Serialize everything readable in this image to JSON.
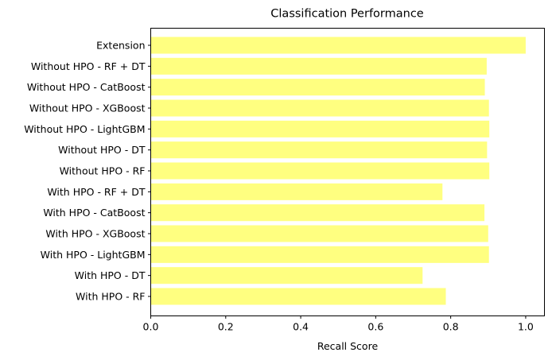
{
  "chart_data": {
    "type": "bar",
    "orientation": "horizontal",
    "title": "Classification Performance",
    "xlabel": "Recall Score",
    "ylabel": "",
    "xlim": [
      0,
      1.05
    ],
    "xticks": [
      "0.0",
      "0.2",
      "0.4",
      "0.6",
      "0.8",
      "1.0"
    ],
    "grid": false,
    "bar_color": "#ffff80",
    "categories": [
      "With HPO - RF",
      "With HPO - DT",
      "With HPO - LightGBM",
      "With HPO - XGBoost",
      "With HPO - CatBoost",
      "With HPO - RF + DT",
      "Without HPO - RF",
      "Without HPO - DT",
      "Without HPO - LightGBM",
      "Without HPO - XGBoost",
      "Without HPO - CatBoost",
      "Without HPO - RF + DT",
      "Extension"
    ],
    "values": [
      0.787,
      0.725,
      0.902,
      0.9,
      0.89,
      0.778,
      0.903,
      0.897,
      0.903,
      0.902,
      0.891,
      0.896,
      1.0
    ]
  }
}
